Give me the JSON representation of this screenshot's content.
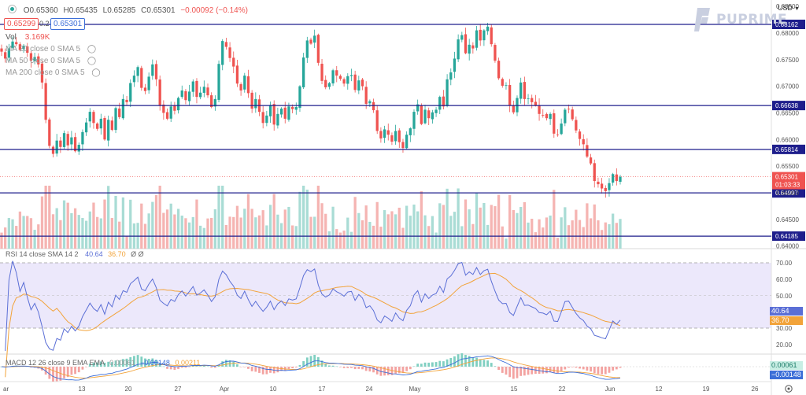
{
  "header": {
    "ohlc": {
      "o": "O0.65360",
      "h": "H0.65435",
      "l": "L0.65285",
      "c": "C0.65301",
      "chg": "−0.00092 (−0.14%)"
    },
    "bid": "0.65299",
    "spread": "0.2",
    "ask": "0.65301",
    "vol_label": "Vol",
    "vol_value": "3.169K",
    "ma_labels": [
      "MA 20 close 0 SMA 5",
      "MA 50 close 0 SMA 5",
      "MA 200 close 0 SMA 5"
    ],
    "currency": "USD",
    "brand": "PUPRIME"
  },
  "rsi_header": {
    "label": "RSI 14 close SMA 14 2",
    "rsi": "40.64",
    "sma": "36.70",
    "extra": "Ø Ø"
  },
  "macd_header": {
    "label": "MACD 12 26 close 9 EMA EMA",
    "v1": "0.00061",
    "v2": "−0.00148",
    "v3": "0.00211"
  },
  "colors": {
    "up": "#26a69a",
    "down": "#ef5350",
    "level": "#1e1e8c",
    "rsi": "#5b6fd6",
    "rsi_sma": "#f2a33a",
    "rsi_band": "#ece8fb",
    "macd": "#3d6fd8",
    "signal": "#f2a33a",
    "price_tag": "#ef5350"
  },
  "chart_data": {
    "type": "candlestick",
    "price_axis": {
      "ticks": [
        "0.68500",
        "0.68000",
        "0.67500",
        "0.67000",
        "0.66500",
        "0.66000",
        "0.65500",
        "0.65000",
        "0.64500",
        "0.64000"
      ],
      "range": [
        0.6395,
        0.6862
      ]
    },
    "x_labels": [
      "ar",
      "13",
      "20",
      "27",
      "Apr",
      "10",
      "17",
      "24",
      "May",
      "8",
      "15",
      "22",
      "Jun",
      "12",
      "19",
      "26"
    ],
    "levels": [
      {
        "label": "0.68162",
        "value": 0.68162
      },
      {
        "label": "0.66638",
        "value": 0.66638
      },
      {
        "label": "0.65814",
        "value": 0.65814
      },
      {
        "label": "0.64997",
        "value": 0.64997
      },
      {
        "label": "0.64185",
        "value": 0.64185
      }
    ],
    "last_price": {
      "label": "0.65301",
      "countdown": "01:03:33",
      "value": 0.65301
    },
    "closes": [
      0.6765,
      0.6752,
      0.6771,
      0.6784,
      0.6779,
      0.6768,
      0.6776,
      0.6763,
      0.6748,
      0.6755,
      0.6741,
      0.6707,
      0.6637,
      0.6588,
      0.6573,
      0.6598,
      0.6586,
      0.6612,
      0.6589,
      0.6604,
      0.6578,
      0.659,
      0.6614,
      0.6632,
      0.6652,
      0.6631,
      0.662,
      0.6639,
      0.66,
      0.6637,
      0.6618,
      0.6659,
      0.6642,
      0.6676,
      0.667,
      0.6706,
      0.672,
      0.6736,
      0.6697,
      0.6691,
      0.6718,
      0.6741,
      0.6713,
      0.6664,
      0.665,
      0.6639,
      0.6662,
      0.6654,
      0.6678,
      0.6692,
      0.6674,
      0.669,
      0.6709,
      0.668,
      0.6688,
      0.6699,
      0.6683,
      0.6661,
      0.6676,
      0.6742,
      0.6785,
      0.6774,
      0.6753,
      0.6737,
      0.6705,
      0.6692,
      0.672,
      0.6687,
      0.6658,
      0.6676,
      0.6652,
      0.6631,
      0.6645,
      0.6665,
      0.6628,
      0.6648,
      0.6658,
      0.6639,
      0.6662,
      0.6657,
      0.6661,
      0.67,
      0.6754,
      0.6786,
      0.678,
      0.6795,
      0.6744,
      0.671,
      0.6698,
      0.6706,
      0.673,
      0.672,
      0.6714,
      0.6705,
      0.6719,
      0.6721,
      0.6693,
      0.6711,
      0.67,
      0.6667,
      0.6672,
      0.6655,
      0.6616,
      0.6602,
      0.6619,
      0.6609,
      0.6596,
      0.6616,
      0.6595,
      0.6584,
      0.6609,
      0.6621,
      0.6652,
      0.6666,
      0.6629,
      0.6656,
      0.664,
      0.6651,
      0.6656,
      0.668,
      0.6662,
      0.6713,
      0.6726,
      0.6752,
      0.6788,
      0.6796,
      0.6762,
      0.6778,
      0.6771,
      0.6805,
      0.6786,
      0.6805,
      0.6812,
      0.6779,
      0.6748,
      0.6715,
      0.6701,
      0.6702,
      0.6664,
      0.6651,
      0.6678,
      0.6707,
      0.6676,
      0.6677,
      0.667,
      0.6664,
      0.6648,
      0.6646,
      0.664,
      0.6648,
      0.6611,
      0.6609,
      0.663,
      0.6656,
      0.6657,
      0.6638,
      0.6617,
      0.6601,
      0.6591,
      0.6568,
      0.6555,
      0.6522,
      0.6516,
      0.6508,
      0.6503,
      0.6518,
      0.6535,
      0.6522,
      0.653
    ]
  }
}
